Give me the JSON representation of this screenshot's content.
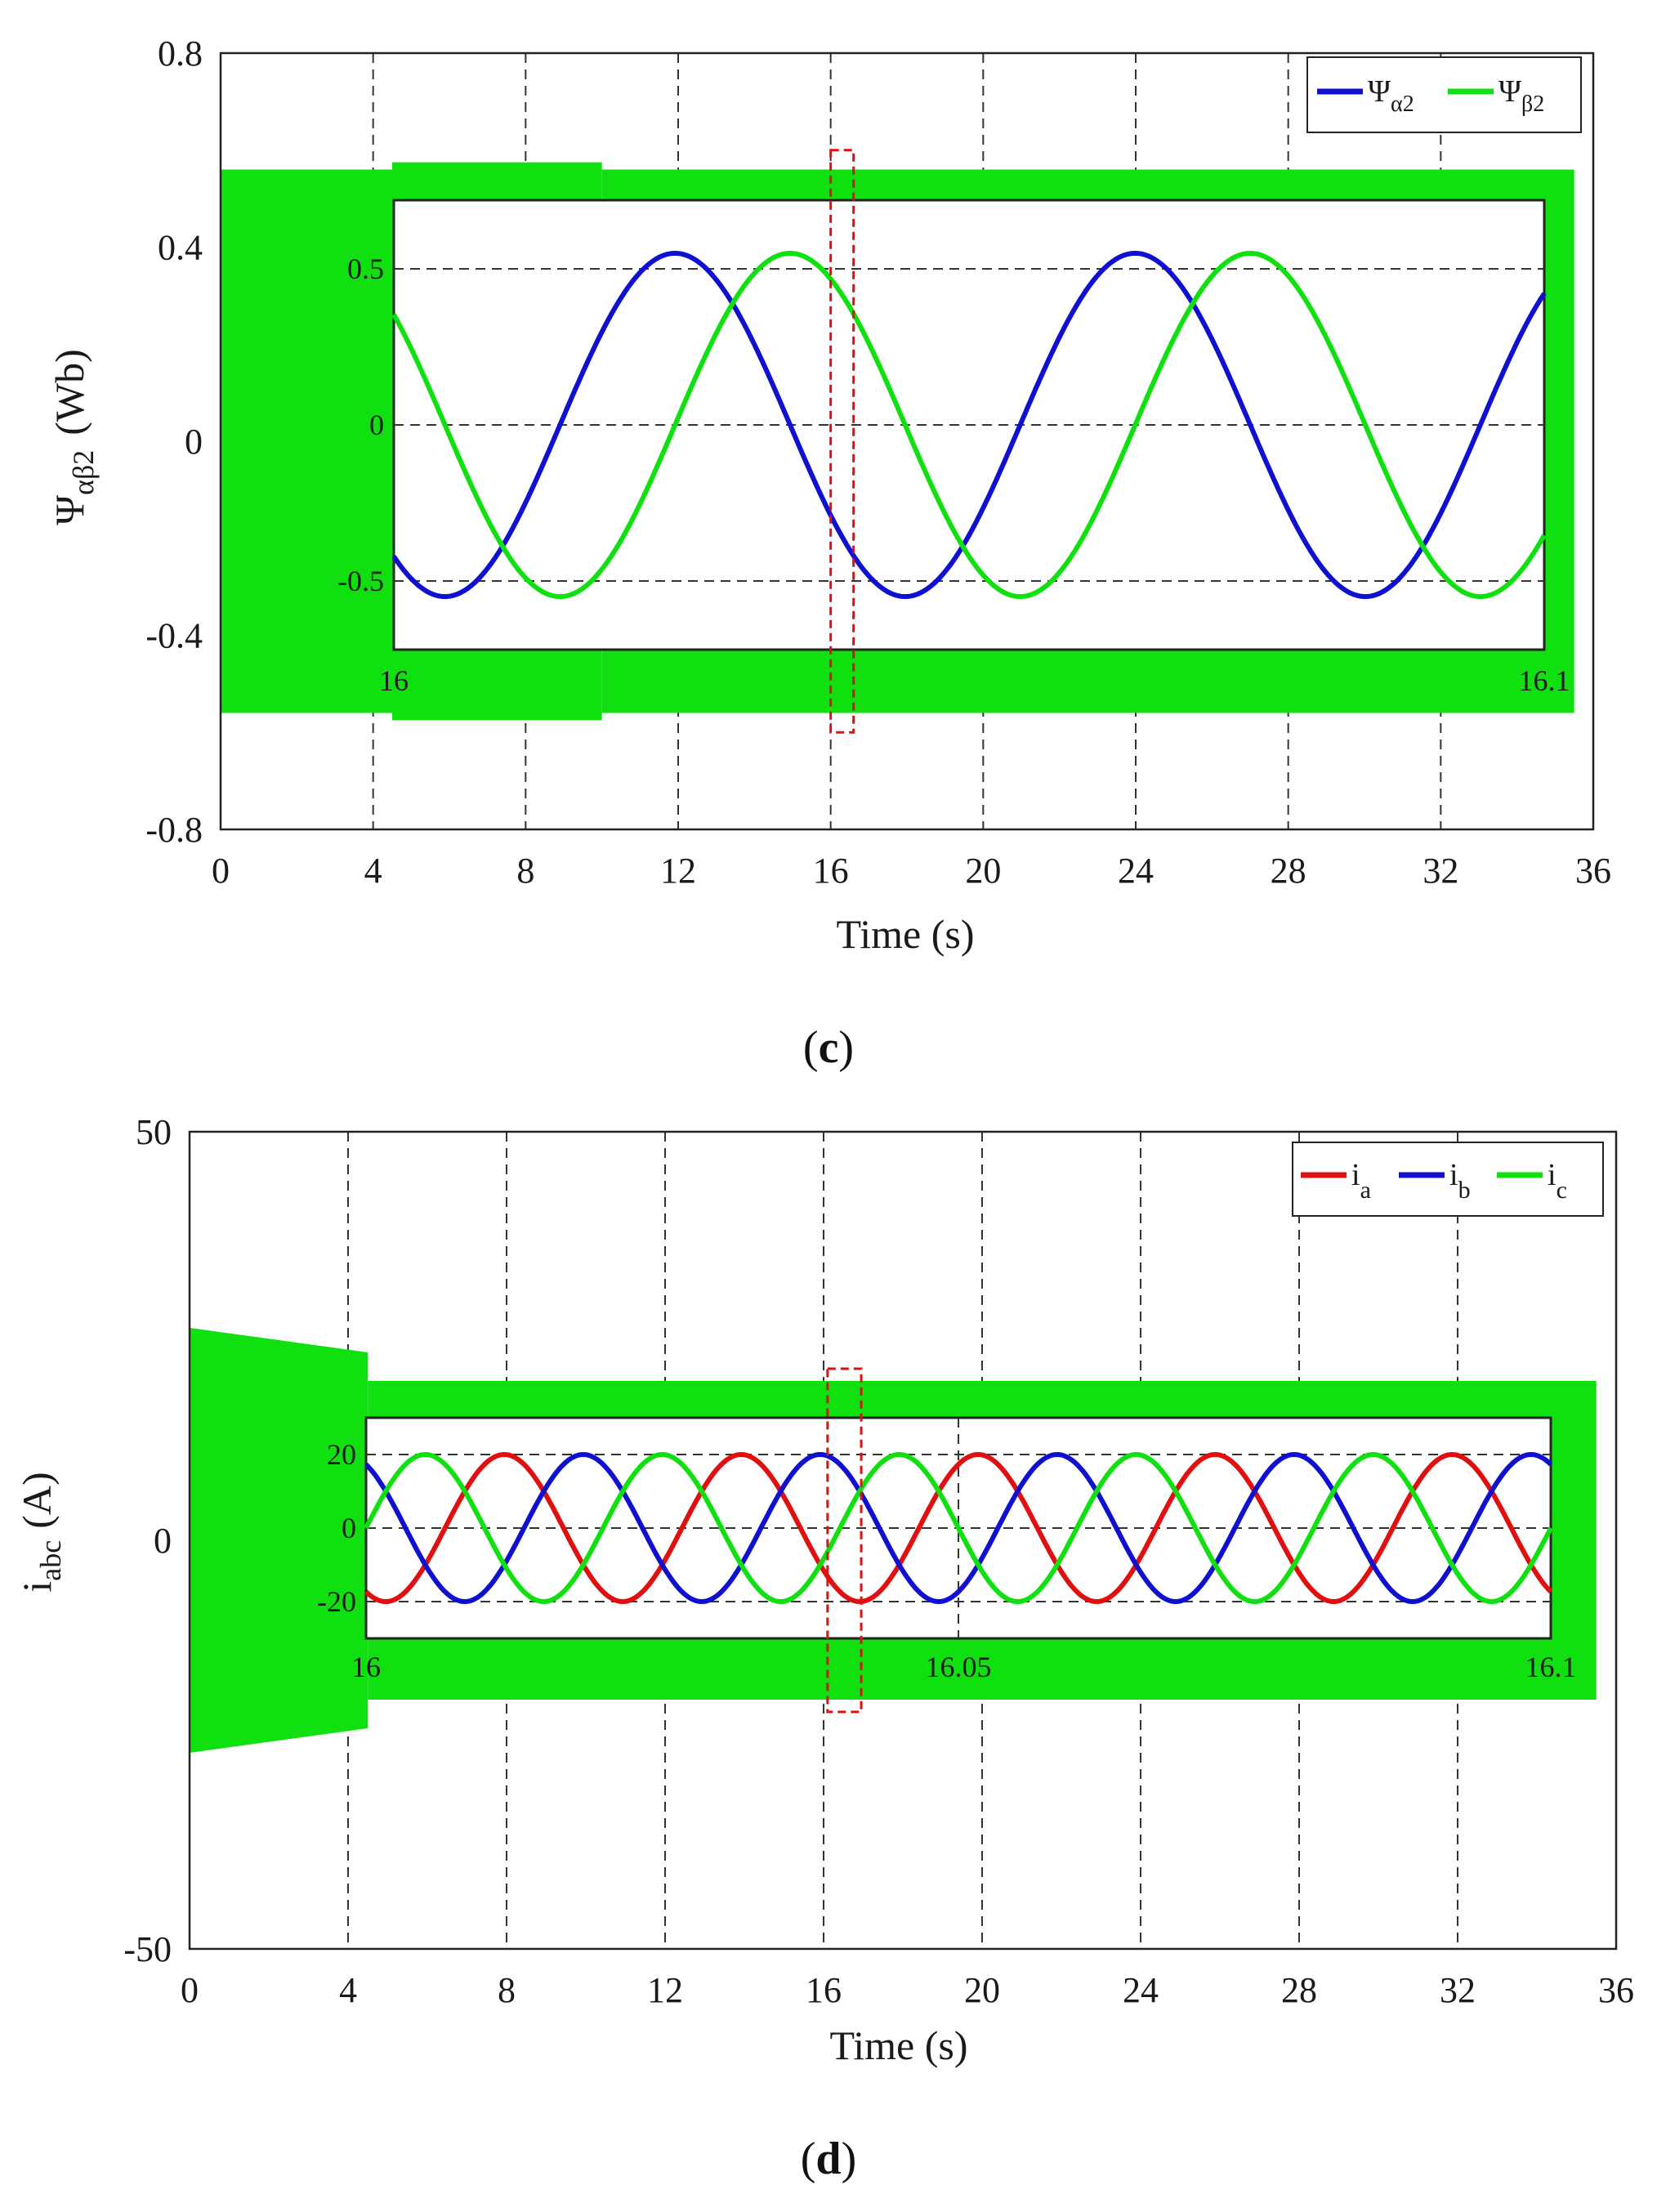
{
  "chart_data": [
    {
      "type": "line",
      "panel_label": {
        "open": "(",
        "letter": "c",
        "close": ")"
      },
      "xlabel": "Time (s)",
      "ylabel": {
        "base": "Ψ",
        "sub": "αβ2",
        "unit": "(Wb)"
      },
      "xlim": [
        0,
        36
      ],
      "ylim": [
        -0.8,
        0.8
      ],
      "xticks": [
        0,
        4,
        8,
        12,
        16,
        20,
        24,
        28,
        32,
        36
      ],
      "yticks": [
        -0.8,
        -0.4,
        0,
        0.4,
        0.8
      ],
      "ytick_labels": [
        "-0.8",
        "-0.4",
        "0",
        "0.4",
        "0.8"
      ],
      "grid": true,
      "legend_position": "top-right",
      "series": [
        {
          "name": "Ψα2",
          "base": "Ψ",
          "sub": "α2",
          "color": "#1010d0"
        },
        {
          "name": "Ψβ2",
          "base": "Ψ",
          "sub": "β2",
          "color": "#10e010"
        }
      ],
      "envelope": {
        "color": "#10e010",
        "segments": [
          {
            "x": [
              0,
              4.5
            ],
            "amplitude": 0.56
          },
          {
            "x": [
              4.5,
              10
            ],
            "amplitude": 0.575
          },
          {
            "x": [
              10,
              35.5
            ],
            "amplitude": 0.56
          }
        ]
      },
      "highlight": {
        "x": [
          16,
          16.6
        ],
        "y": [
          -0.6,
          0.6
        ],
        "color": "#e01010"
      },
      "inset": {
        "xlim": [
          16,
          16.1
        ],
        "ylim": [
          -0.72,
          0.72
        ],
        "xtick_labels": [
          "16",
          "16.1"
        ],
        "yticks": [
          -0.5,
          0,
          0.5
        ],
        "ytick_labels": [
          "-0.5",
          "0",
          "0.5"
        ],
        "amplitude": 0.55,
        "frequency_hz": 25,
        "series": [
          {
            "name": "Ψα2",
            "phase_deg": -130,
            "color": "#1010d0"
          },
          {
            "name": "Ψβ2",
            "phase_deg": 140,
            "color": "#10e010"
          }
        ]
      }
    },
    {
      "type": "line",
      "panel_label": {
        "open": "(",
        "letter": "d",
        "close": ")"
      },
      "xlabel": "Time (s)",
      "ylabel": {
        "base": "i",
        "sub": "abc",
        "unit": "(A)"
      },
      "xlim": [
        0,
        36
      ],
      "ylim": [
        -50,
        50
      ],
      "xticks": [
        0,
        4,
        8,
        12,
        16,
        20,
        24,
        28,
        32,
        36
      ],
      "yticks": [
        -50,
        0,
        50
      ],
      "ytick_labels": [
        "-50",
        "0",
        "50"
      ],
      "grid": true,
      "legend_position": "top-right",
      "series": [
        {
          "name": "ia",
          "base": "i",
          "sub": "a",
          "color": "#e01010"
        },
        {
          "name": "ib",
          "base": "i",
          "sub": "b",
          "color": "#1010d0"
        },
        {
          "name": "ic",
          "base": "i",
          "sub": "c",
          "color": "#10e010"
        }
      ],
      "envelope": {
        "color": "#10e010",
        "segments": [
          {
            "x": [
              0,
              4.5
            ],
            "amplitude_start": 26,
            "amplitude_end": 23
          },
          {
            "x": [
              4.5,
              35.5
            ],
            "amplitude": 19.5
          }
        ]
      },
      "highlight": {
        "x": [
          16.1,
          16.95
        ],
        "y": [
          -21,
          21
        ],
        "color": "#e01010"
      },
      "inset": {
        "xlim": [
          16,
          16.1
        ],
        "ylim": [
          -30,
          30
        ],
        "xtick_labels": [
          "16",
          "16.05",
          "16.1"
        ],
        "yticks": [
          -20,
          0,
          20
        ],
        "ytick_labels": [
          "-20",
          "0",
          "20"
        ],
        "amplitude": 20,
        "frequency_hz": 50,
        "series": [
          {
            "name": "ia",
            "phase_deg": -120,
            "color": "#e01010"
          },
          {
            "name": "ib",
            "phase_deg": 120,
            "color": "#1010d0"
          },
          {
            "name": "ic",
            "phase_deg": 0,
            "color": "#10e010"
          }
        ]
      }
    }
  ]
}
